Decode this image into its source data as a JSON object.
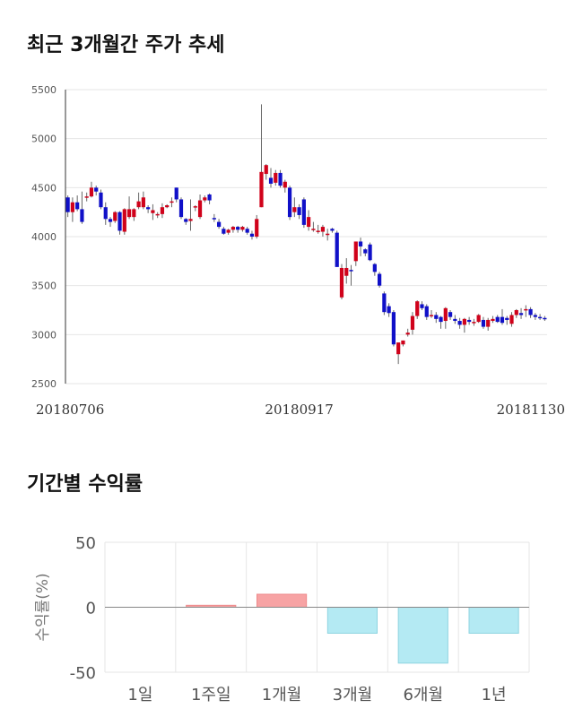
{
  "chart_data": [
    {
      "type": "candlestick",
      "title": "최근 3개월간 주가 추세",
      "ylim": [
        2500,
        5500
      ],
      "yticks": [
        2500,
        3000,
        3500,
        4000,
        4500,
        5000,
        5500
      ],
      "x_labels": [
        {
          "label": "20180706",
          "index": 0
        },
        {
          "label": "20180917",
          "index": 49
        },
        {
          "label": "20181130",
          "index": 101
        }
      ],
      "colors": {
        "up": "#d0021b",
        "down": "#1010c8",
        "grid": "#e6e6e6"
      },
      "ohlc": [
        [
          4400,
          4420,
          4200,
          4250
        ],
        [
          4250,
          4400,
          4150,
          4350
        ],
        [
          4350,
          4420,
          4260,
          4280
        ],
        [
          4280,
          4460,
          4130,
          4150
        ],
        [
          4400,
          4450,
          4360,
          4410
        ],
        [
          4410,
          4560,
          4400,
          4500
        ],
        [
          4500,
          4520,
          4420,
          4460
        ],
        [
          4450,
          4480,
          4280,
          4300
        ],
        [
          4300,
          4350,
          4120,
          4180
        ],
        [
          4180,
          4200,
          4100,
          4150
        ],
        [
          4160,
          4260,
          4140,
          4250
        ],
        [
          4250,
          4260,
          4020,
          4060
        ],
        [
          4050,
          4290,
          4020,
          4280
        ],
        [
          4200,
          4410,
          4180,
          4280
        ],
        [
          4200,
          4290,
          4160,
          4280
        ],
        [
          4300,
          4450,
          4280,
          4360
        ],
        [
          4300,
          4460,
          4280,
          4400
        ],
        [
          4300,
          4320,
          4240,
          4280
        ],
        [
          4240,
          4330,
          4170,
          4270
        ],
        [
          4220,
          4250,
          4190,
          4230
        ],
        [
          4230,
          4340,
          4190,
          4300
        ],
        [
          4300,
          4330,
          4290,
          4320
        ],
        [
          4350,
          4400,
          4300,
          4360
        ],
        [
          4500,
          4500,
          4350,
          4380
        ],
        [
          4380,
          4400,
          4180,
          4200
        ],
        [
          4180,
          4190,
          4120,
          4150
        ],
        [
          4160,
          4380,
          4060,
          4180
        ],
        [
          4300,
          4320,
          4260,
          4310
        ],
        [
          4200,
          4430,
          4180,
          4370
        ],
        [
          4370,
          4420,
          4350,
          4400
        ],
        [
          4430,
          4440,
          4330,
          4370
        ],
        [
          4190,
          4230,
          4150,
          4180
        ],
        [
          4150,
          4180,
          4080,
          4100
        ],
        [
          4080,
          4100,
          4020,
          4030
        ],
        [
          4040,
          4080,
          4020,
          4070
        ],
        [
          4070,
          4110,
          4040,
          4100
        ],
        [
          4100,
          4110,
          4040,
          4070
        ],
        [
          4070,
          4110,
          4050,
          4100
        ],
        [
          4080,
          4100,
          4020,
          4040
        ],
        [
          4030,
          4060,
          3970,
          4000
        ],
        [
          4000,
          4220,
          3980,
          4180
        ],
        [
          4300,
          5350,
          4300,
          4660
        ],
        [
          4640,
          4740,
          4580,
          4730
        ],
        [
          4600,
          4700,
          4500,
          4540
        ],
        [
          4550,
          4680,
          4520,
          4650
        ],
        [
          4650,
          4680,
          4500,
          4520
        ],
        [
          4500,
          4580,
          4450,
          4560
        ],
        [
          4500,
          4520,
          4170,
          4200
        ],
        [
          4250,
          4400,
          4200,
          4300
        ],
        [
          4300,
          4330,
          4180,
          4220
        ],
        [
          4380,
          4400,
          4090,
          4120
        ],
        [
          4100,
          4270,
          4060,
          4200
        ],
        [
          4080,
          4150,
          4050,
          4080
        ],
        [
          4060,
          4120,
          4030,
          4060
        ],
        [
          4050,
          4120,
          4000,
          4100
        ],
        [
          4030,
          4080,
          3960,
          4030
        ],
        [
          4080,
          4090,
          4040,
          4060
        ],
        [
          4040,
          4060,
          3700,
          3690
        ],
        [
          3380,
          3720,
          3360,
          3680
        ],
        [
          3600,
          3780,
          3520,
          3680
        ],
        [
          3660,
          3710,
          3500,
          3650
        ],
        [
          3750,
          3950,
          3700,
          3950
        ],
        [
          3950,
          3990,
          3800,
          3900
        ],
        [
          3870,
          3880,
          3800,
          3830
        ],
        [
          3920,
          3940,
          3750,
          3760
        ],
        [
          3720,
          3730,
          3600,
          3640
        ],
        [
          3620,
          3640,
          3480,
          3500
        ],
        [
          3420,
          3440,
          3200,
          3230
        ],
        [
          3290,
          3320,
          3180,
          3220
        ],
        [
          3230,
          3250,
          2880,
          2900
        ],
        [
          2800,
          2900,
          2700,
          2920
        ],
        [
          2900,
          2940,
          2880,
          2940
        ],
        [
          3000,
          3060,
          2980,
          3020
        ],
        [
          3050,
          3230,
          3000,
          3190
        ],
        [
          3190,
          3350,
          3160,
          3340
        ],
        [
          3310,
          3340,
          3250,
          3270
        ],
        [
          3290,
          3310,
          3150,
          3180
        ],
        [
          3200,
          3250,
          3170,
          3200
        ],
        [
          3200,
          3230,
          3120,
          3160
        ],
        [
          3180,
          3190,
          3060,
          3130
        ],
        [
          3140,
          3280,
          3060,
          3270
        ],
        [
          3230,
          3250,
          3150,
          3180
        ],
        [
          3160,
          3200,
          3110,
          3140
        ],
        [
          3140,
          3170,
          3060,
          3100
        ],
        [
          3100,
          3170,
          3020,
          3160
        ],
        [
          3150,
          3180,
          3100,
          3130
        ],
        [
          3120,
          3160,
          3090,
          3130
        ],
        [
          3130,
          3210,
          3120,
          3200
        ],
        [
          3150,
          3180,
          3060,
          3080
        ],
        [
          3080,
          3170,
          3040,
          3150
        ],
        [
          3140,
          3190,
          3120,
          3160
        ],
        [
          3180,
          3200,
          3120,
          3130
        ],
        [
          3180,
          3260,
          3100,
          3120
        ],
        [
          3170,
          3190,
          3100,
          3150
        ],
        [
          3110,
          3230,
          3080,
          3200
        ],
        [
          3200,
          3260,
          3170,
          3250
        ],
        [
          3220,
          3270,
          3160,
          3200
        ],
        [
          3250,
          3300,
          3180,
          3260
        ],
        [
          3260,
          3280,
          3170,
          3200
        ],
        [
          3200,
          3220,
          3150,
          3180
        ],
        [
          3180,
          3210,
          3150,
          3170
        ],
        [
          3170,
          3190,
          3140,
          3160
        ]
      ]
    },
    {
      "type": "bar",
      "title": "기간별 수익률",
      "ylabel": "수익률(%)",
      "ylim": [
        -50,
        50
      ],
      "yticks": [
        50,
        0,
        -50
      ],
      "categories": [
        "1일",
        "1주일",
        "1개월",
        "3개월",
        "6개월",
        "1년"
      ],
      "values": [
        0,
        1.5,
        10,
        -20,
        -43,
        -20
      ],
      "colors": {
        "positive": "#f7a3a4",
        "negative": "#b4eaf3",
        "positive_edge": "#ee8a8b",
        "negative_edge": "#8fd4e0"
      }
    }
  ]
}
